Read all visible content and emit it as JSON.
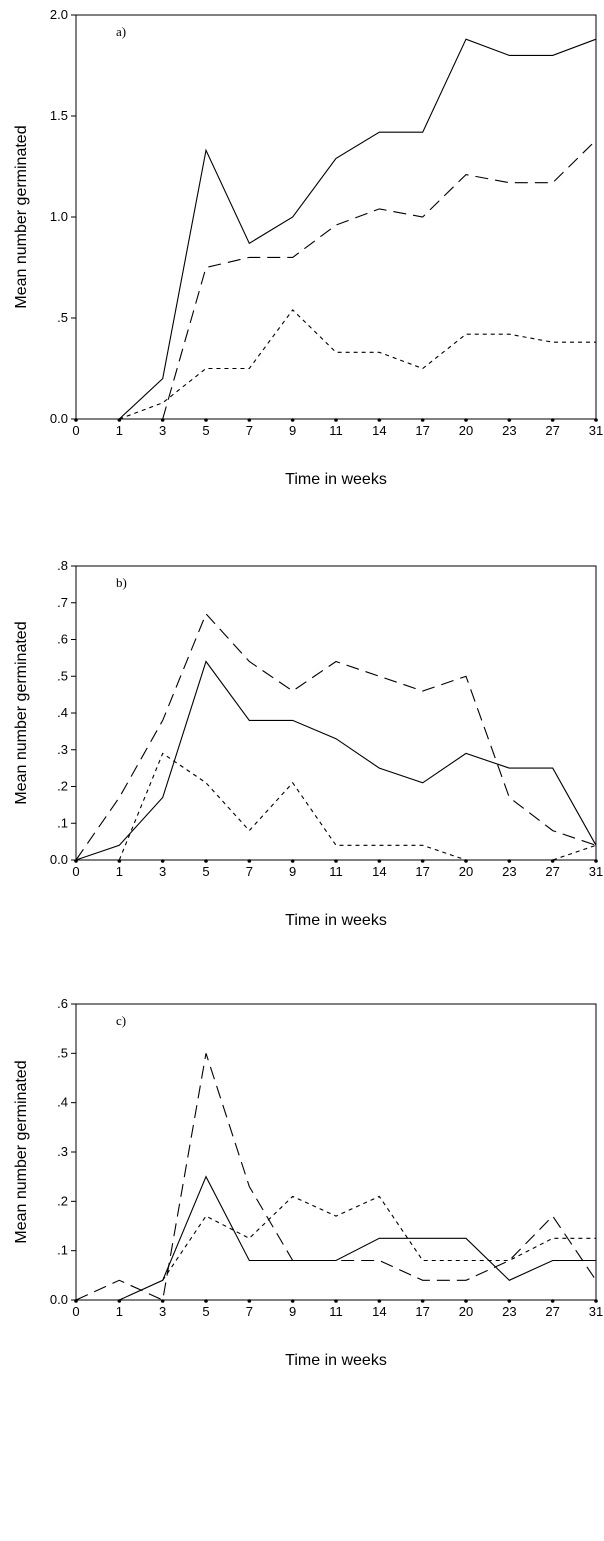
{
  "chart_data": [
    {
      "type": "line",
      "panel_label": "a)",
      "xlabel": "Time in weeks",
      "ylabel": "Mean number germinated",
      "categories": [
        "0",
        "1",
        "3",
        "5",
        "7",
        "9",
        "11",
        "14",
        "17",
        "20",
        "23",
        "27",
        "31"
      ],
      "ylim": [
        0,
        2.0
      ],
      "yticks": [
        0,
        0.5,
        1.0,
        1.5,
        2.0
      ],
      "ytick_labels": [
        "0.0",
        ".5",
        "1.0",
        "1.5",
        "2.0"
      ],
      "grid": false,
      "series": [
        {
          "style": "solid",
          "values": [
            null,
            0,
            0.2,
            1.33,
            0.87,
            1.0,
            1.29,
            1.42,
            1.42,
            1.88,
            1.8,
            1.8,
            1.88
          ]
        },
        {
          "style": "dashed",
          "values": [
            null,
            null,
            0,
            0.75,
            0.8,
            0.8,
            0.96,
            1.04,
            1.0,
            1.21,
            1.17,
            1.17,
            1.38
          ]
        },
        {
          "style": "dotted",
          "values": [
            null,
            0,
            0.08,
            0.25,
            0.25,
            0.54,
            0.33,
            0.33,
            0.25,
            0.42,
            0.42,
            0.38,
            0.38
          ]
        }
      ]
    },
    {
      "type": "line",
      "panel_label": "b)",
      "xlabel": "Time in weeks",
      "ylabel": "Mean number germinated",
      "categories": [
        "0",
        "1",
        "3",
        "5",
        "7",
        "9",
        "11",
        "14",
        "17",
        "20",
        "23",
        "27",
        "31"
      ],
      "ylim": [
        0,
        0.8
      ],
      "yticks": [
        0,
        0.1,
        0.2,
        0.3,
        0.4,
        0.5,
        0.6,
        0.7,
        0.8
      ],
      "ytick_labels": [
        "0.0",
        ".1",
        ".2",
        ".3",
        ".4",
        ".5",
        ".6",
        ".7",
        ".8"
      ],
      "grid": false,
      "series": [
        {
          "style": "solid",
          "values": [
            0,
            0.04,
            0.17,
            0.54,
            0.38,
            0.38,
            0.33,
            0.25,
            0.21,
            0.29,
            0.25,
            0.25,
            0.04
          ]
        },
        {
          "style": "dashed",
          "values": [
            0,
            0.17,
            0.38,
            0.67,
            0.54,
            0.46,
            0.54,
            0.5,
            0.46,
            0.5,
            0.17,
            0.08,
            0.04
          ]
        },
        {
          "style": "dotted",
          "values": [
            null,
            0,
            0.29,
            0.21,
            0.08,
            0.21,
            0.04,
            0.04,
            0.04,
            0,
            0,
            0,
            0.04
          ]
        }
      ]
    },
    {
      "type": "line",
      "panel_label": "c)",
      "xlabel": "Time in weeks",
      "ylabel": "Mean number germinated",
      "categories": [
        "0",
        "1",
        "3",
        "5",
        "7",
        "9",
        "11",
        "14",
        "17",
        "20",
        "23",
        "27",
        "31"
      ],
      "ylim": [
        0,
        0.6
      ],
      "yticks": [
        0,
        0.1,
        0.2,
        0.3,
        0.4,
        0.5,
        0.6
      ],
      "ytick_labels": [
        "0.0",
        ".1",
        ".2",
        ".3",
        ".4",
        ".5",
        ".6"
      ],
      "grid": false,
      "series": [
        {
          "style": "solid",
          "values": [
            null,
            0,
            0.04,
            0.25,
            0.08,
            0.08,
            0.08,
            0.125,
            0.125,
            0.125,
            0.04,
            0.08,
            0.08
          ]
        },
        {
          "style": "dashed",
          "values": [
            0,
            0.04,
            0,
            0.5,
            0.23,
            0.08,
            0.08,
            0.08,
            0.04,
            0.04,
            0.08,
            0.17,
            0.04
          ]
        },
        {
          "style": "dotted",
          "values": [
            null,
            null,
            0.04,
            0.17,
            0.125,
            0.21,
            0.17,
            0.21,
            0.08,
            0.08,
            0.08,
            0.125,
            0.125
          ]
        }
      ]
    }
  ]
}
